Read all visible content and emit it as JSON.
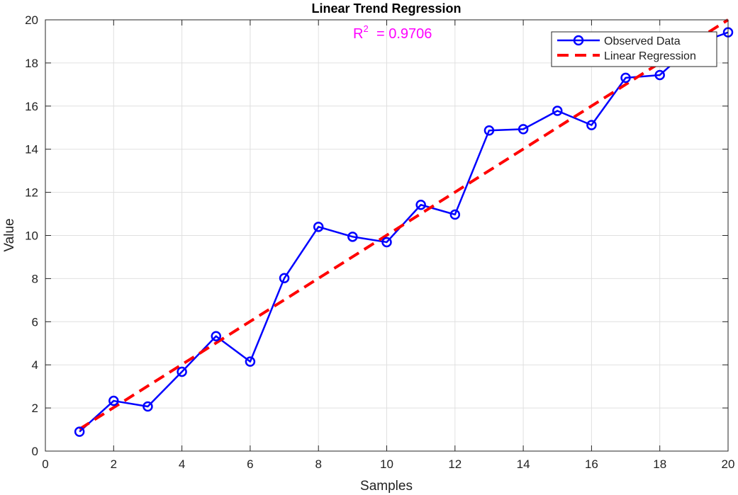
{
  "chart_data": {
    "type": "line",
    "title": "Linear Trend Regression",
    "xlabel": "Samples",
    "ylabel": "Value",
    "xlim": [
      0,
      20
    ],
    "ylim": [
      0,
      20
    ],
    "xticks": [
      0,
      2,
      4,
      6,
      8,
      10,
      12,
      14,
      16,
      18,
      20
    ],
    "yticks": [
      0,
      2,
      4,
      6,
      8,
      10,
      12,
      14,
      16,
      18,
      20
    ],
    "grid": true,
    "legend_position": "top-right",
    "annotation": {
      "base": "R",
      "superscript": "2",
      "text": "=  0.9706",
      "color": "#ff00ff"
    },
    "series": [
      {
        "name": "Observed Data",
        "style": "solid-line-circle-markers",
        "color": "#0000ff",
        "x": [
          1,
          2,
          3,
          4,
          5,
          6,
          7,
          8,
          9,
          10,
          11,
          12,
          13,
          14,
          15,
          16,
          17,
          18,
          19,
          20
        ],
        "y": [
          0.9,
          2.33,
          2.07,
          3.68,
          5.33,
          4.15,
          8.02,
          10.4,
          9.94,
          9.69,
          11.42,
          10.97,
          14.87,
          14.93,
          15.78,
          15.12,
          17.31,
          17.44,
          18.84,
          19.42
        ]
      },
      {
        "name": "Linear Regression",
        "style": "dashed-line",
        "color": "#ff0000",
        "x": [
          1,
          20
        ],
        "y": [
          1.02,
          20.0
        ]
      }
    ]
  }
}
